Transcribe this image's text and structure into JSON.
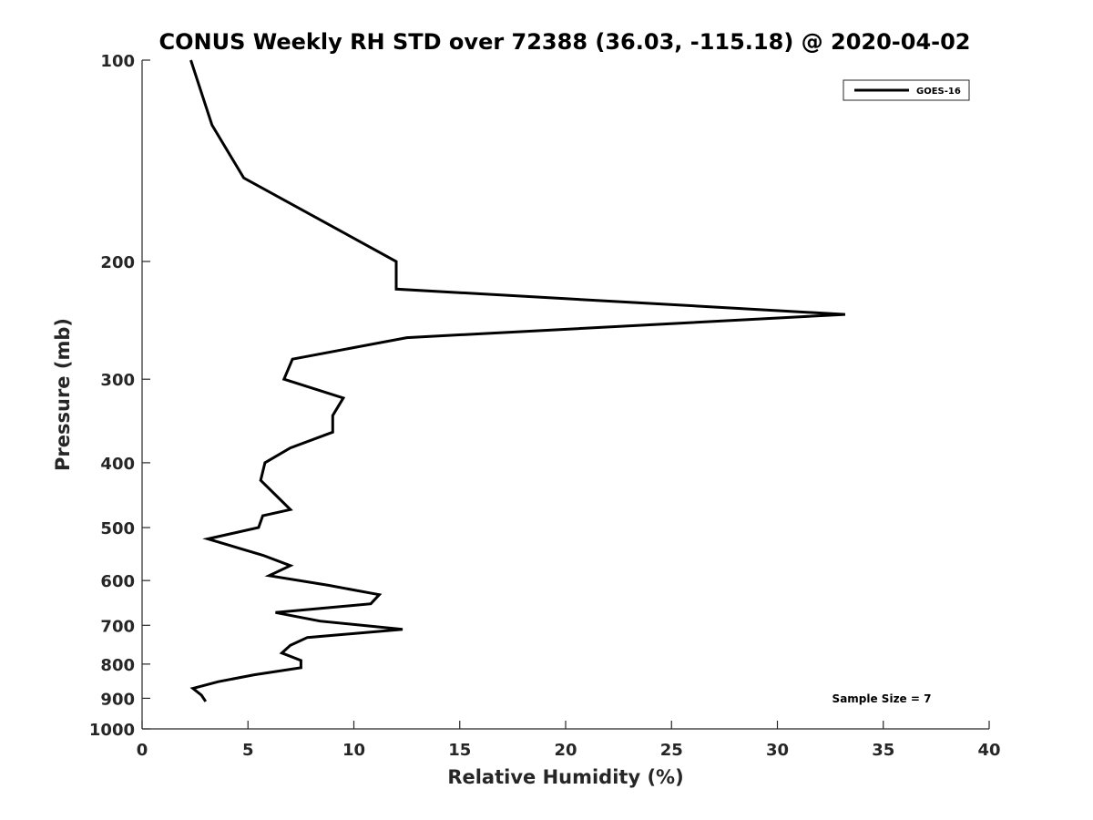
{
  "chart_data": {
    "type": "line",
    "title": "CONUS Weekly RH STD over 72388 (36.03, -115.18) @ 2020-04-02",
    "xlabel": "Relative Humidity (%)",
    "ylabel": "Pressure (mb)",
    "xlim": [
      0,
      40
    ],
    "ylim": [
      100,
      1000
    ],
    "y_scale": "log",
    "y_reversed": true,
    "grid": false,
    "legend_position": "top-right",
    "x_ticks": [
      0,
      5,
      10,
      15,
      20,
      25,
      30,
      35,
      40
    ],
    "y_ticks": [
      100,
      200,
      300,
      400,
      500,
      600,
      700,
      800,
      900,
      1000
    ],
    "series": [
      {
        "name": "GOES-16",
        "color": "#000000",
        "points": [
          {
            "x": 2.3,
            "y": 100
          },
          {
            "x": 3.3,
            "y": 125
          },
          {
            "x": 4.8,
            "y": 150
          },
          {
            "x": 12.0,
            "y": 200
          },
          {
            "x": 12.0,
            "y": 220
          },
          {
            "x": 33.2,
            "y": 240
          },
          {
            "x": 12.5,
            "y": 260
          },
          {
            "x": 7.1,
            "y": 280
          },
          {
            "x": 6.7,
            "y": 300
          },
          {
            "x": 9.5,
            "y": 320
          },
          {
            "x": 9.0,
            "y": 340
          },
          {
            "x": 9.0,
            "y": 360
          },
          {
            "x": 7.0,
            "y": 380
          },
          {
            "x": 5.8,
            "y": 400
          },
          {
            "x": 5.6,
            "y": 425
          },
          {
            "x": 6.4,
            "y": 450
          },
          {
            "x": 7.0,
            "y": 470
          },
          {
            "x": 5.7,
            "y": 480
          },
          {
            "x": 5.5,
            "y": 500
          },
          {
            "x": 3.1,
            "y": 520
          },
          {
            "x": 5.7,
            "y": 550
          },
          {
            "x": 7.0,
            "y": 570
          },
          {
            "x": 6.0,
            "y": 590
          },
          {
            "x": 8.8,
            "y": 610
          },
          {
            "x": 11.2,
            "y": 630
          },
          {
            "x": 10.8,
            "y": 650
          },
          {
            "x": 6.3,
            "y": 670
          },
          {
            "x": 8.4,
            "y": 690
          },
          {
            "x": 12.3,
            "y": 710
          },
          {
            "x": 7.8,
            "y": 730
          },
          {
            "x": 7.0,
            "y": 750
          },
          {
            "x": 6.6,
            "y": 770
          },
          {
            "x": 7.5,
            "y": 790
          },
          {
            "x": 7.5,
            "y": 810
          },
          {
            "x": 5.3,
            "y": 830
          },
          {
            "x": 3.6,
            "y": 850
          },
          {
            "x": 2.4,
            "y": 870
          },
          {
            "x": 2.8,
            "y": 890
          },
          {
            "x": 3.0,
            "y": 910
          }
        ]
      }
    ],
    "annotations": [
      {
        "text": "Sample Size = 7",
        "position": "bottom-right"
      }
    ]
  }
}
